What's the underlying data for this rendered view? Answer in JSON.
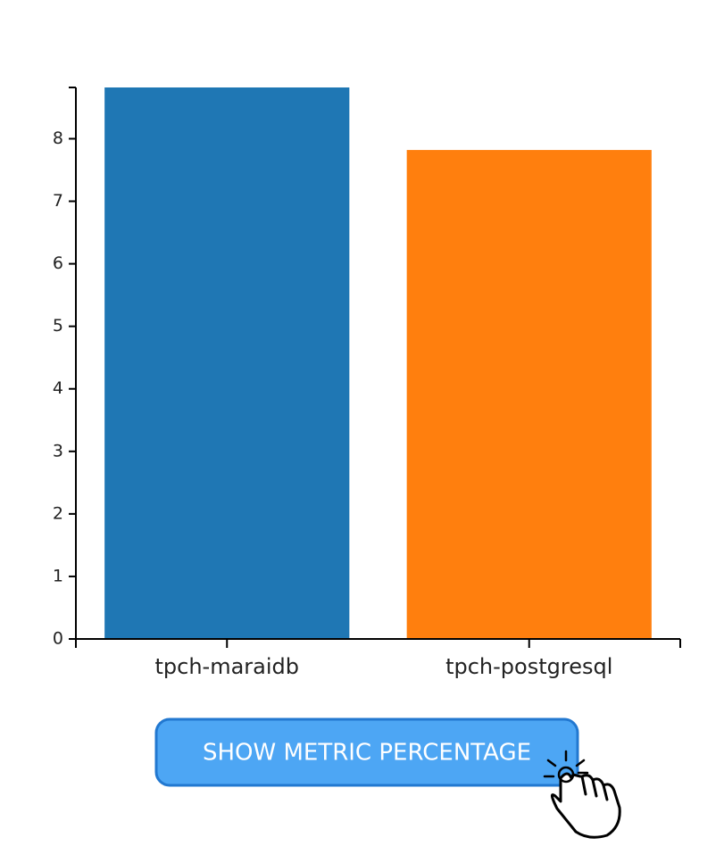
{
  "chart_data": {
    "type": "bar",
    "categories": [
      "tpch-maraidb",
      "tpch-postgresql"
    ],
    "values": [
      8.82,
      7.82
    ],
    "colors": [
      "#1f77b4",
      "#ff7f0e"
    ],
    "ylim": [
      0,
      8.82
    ],
    "yticks": [
      0,
      1,
      2,
      3,
      4,
      5,
      6,
      7,
      8
    ]
  },
  "button": {
    "label": "SHOW METRIC PERCENTAGE"
  }
}
